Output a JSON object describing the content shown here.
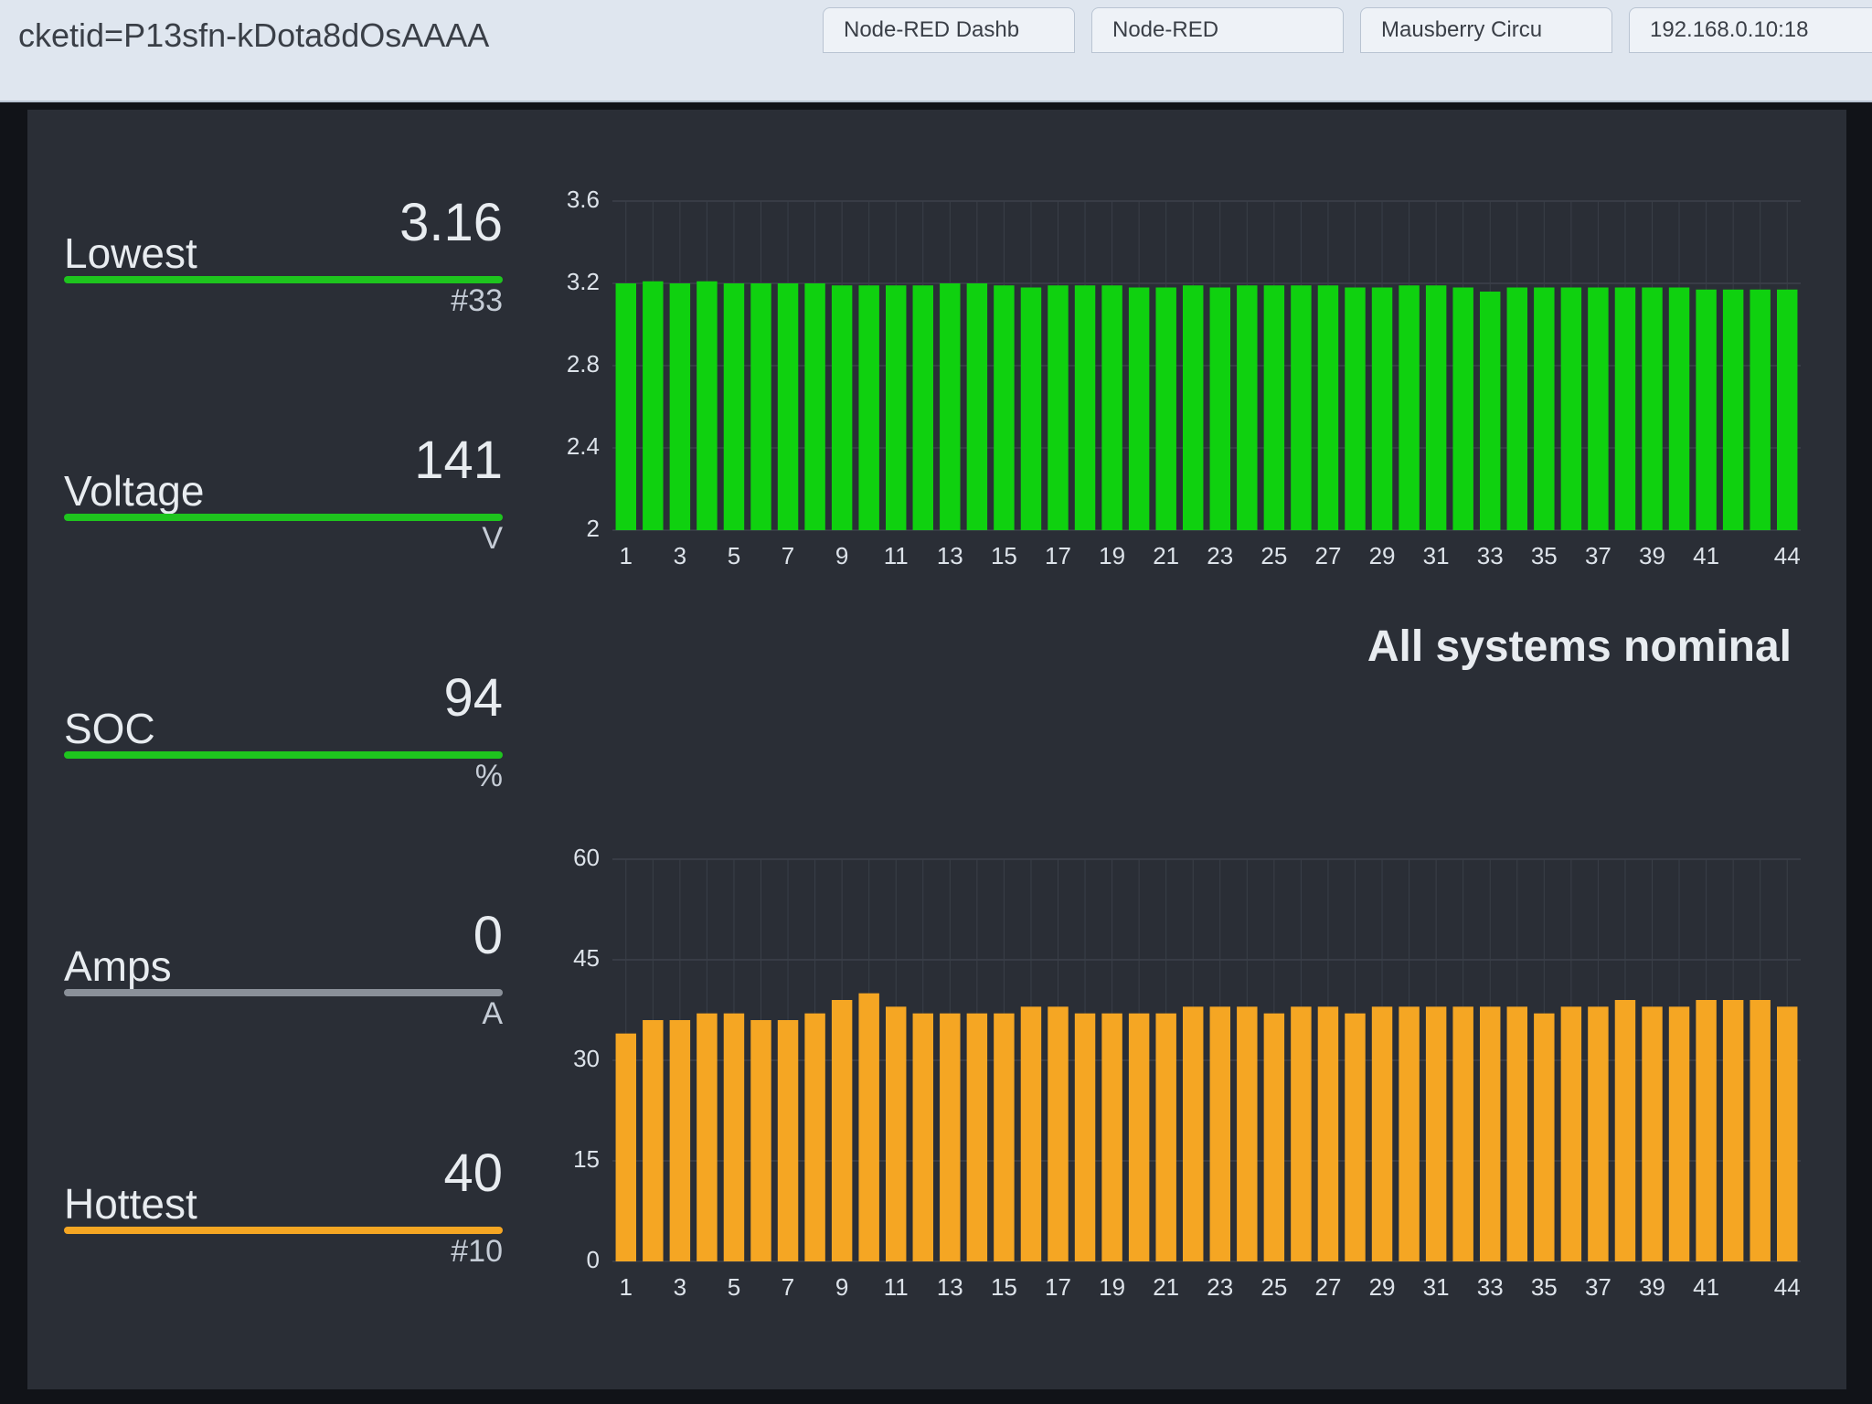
{
  "browser": {
    "url": "cketid=P13sfn-kDota8dOsAAAA",
    "tabs": [
      "Node-RED Dashb",
      "Node-RED",
      "Mausberry Circu",
      "192.168.0.10:18"
    ]
  },
  "gauges": [
    {
      "label": "Lowest",
      "value": 3.16,
      "unit": "#33",
      "color": "#1ec41e"
    },
    {
      "label": "Voltage",
      "value": 141,
      "unit": "V",
      "color": "#1ec41e"
    },
    {
      "label": "SOC",
      "value": 94,
      "unit": "%",
      "color": "#1ec41e"
    },
    {
      "label": "Amps",
      "value": 0,
      "unit": "A",
      "color": "#8a9099"
    },
    {
      "label": "Hottest",
      "value": 40,
      "unit": "#10",
      "color": "#f5a623"
    }
  ],
  "status": "All systems nominal",
  "chart_data": [
    {
      "type": "bar",
      "color": "#0fd10f",
      "categories": [
        1,
        null,
        3,
        null,
        5,
        null,
        7,
        null,
        9,
        null,
        11,
        null,
        13,
        null,
        15,
        null,
        17,
        null,
        19,
        null,
        21,
        null,
        23,
        null,
        25,
        null,
        27,
        null,
        29,
        null,
        31,
        null,
        33,
        null,
        35,
        null,
        37,
        null,
        39,
        null,
        41,
        null,
        null,
        44
      ],
      "values": [
        3.2,
        3.21,
        3.2,
        3.21,
        3.2,
        3.2,
        3.2,
        3.2,
        3.19,
        3.19,
        3.19,
        3.19,
        3.2,
        3.2,
        3.19,
        3.18,
        3.19,
        3.19,
        3.19,
        3.18,
        3.18,
        3.19,
        3.18,
        3.19,
        3.19,
        3.19,
        3.19,
        3.18,
        3.18,
        3.19,
        3.19,
        3.18,
        3.16,
        3.18,
        3.18,
        3.18,
        3.18,
        3.18,
        3.18,
        3.18,
        3.17,
        3.17,
        3.17,
        3.17
      ],
      "ylim": [
        2,
        3.6
      ],
      "yticks": [
        2,
        2.4,
        2.8,
        3.2,
        3.6
      ],
      "grid": true
    },
    {
      "type": "bar",
      "color": "#f5a623",
      "categories": [
        1,
        null,
        3,
        null,
        5,
        null,
        7,
        null,
        9,
        null,
        11,
        null,
        13,
        null,
        15,
        null,
        17,
        null,
        19,
        null,
        21,
        null,
        23,
        null,
        25,
        null,
        27,
        null,
        29,
        null,
        31,
        null,
        33,
        null,
        35,
        null,
        37,
        null,
        39,
        null,
        41,
        null,
        null,
        44
      ],
      "values": [
        34,
        36,
        36,
        37,
        37,
        36,
        36,
        37,
        39,
        40,
        38,
        37,
        37,
        37,
        37,
        38,
        38,
        37,
        37,
        37,
        37,
        38,
        38,
        38,
        37,
        38,
        38,
        37,
        38,
        38,
        38,
        38,
        38,
        38,
        37,
        38,
        38,
        39,
        38,
        38,
        39,
        39,
        39,
        38
      ],
      "ylim": [
        0,
        60
      ],
      "yticks": [
        0,
        15,
        30,
        45,
        60
      ],
      "grid": true
    }
  ]
}
